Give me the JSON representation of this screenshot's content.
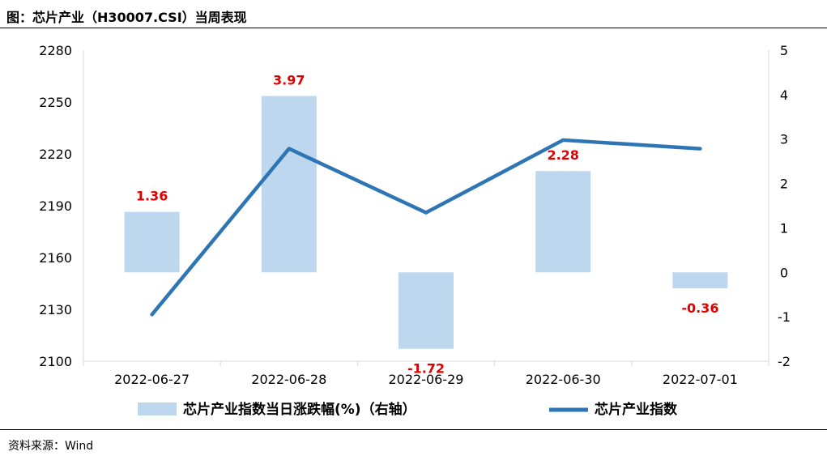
{
  "page": {
    "title": "图：芯片产业（H30007.CSI）当周表现",
    "source": "资料来源：Wind"
  },
  "colors": {
    "bar": "#bdd7ee",
    "line": "#2e75b6",
    "label": "#e00000",
    "axis": "#d9d9d9"
  },
  "chart_data": {
    "type": "bar",
    "categories": [
      "2022-06-27",
      "2022-06-28",
      "2022-06-29",
      "2022-06-30",
      "2022-07-01"
    ],
    "series": [
      {
        "name": "芯片产业指数当日涨跌幅(%)（右轴）",
        "type": "bar",
        "axis": "right",
        "values": [
          1.36,
          3.97,
          -1.72,
          2.28,
          -0.36
        ],
        "labels": [
          "1.36",
          "3.97",
          "-1.72",
          "2.28",
          "-0.36"
        ]
      },
      {
        "name": "芯片产业指数",
        "type": "line",
        "axis": "left",
        "values": [
          2127,
          2223,
          2186,
          2228,
          2223
        ]
      }
    ],
    "y_left": {
      "ylim": [
        2100,
        2280
      ],
      "ticks": [
        "2100",
        "2130",
        "2160",
        "2190",
        "2220",
        "2250",
        "2280"
      ]
    },
    "y_right": {
      "ylim": [
        -2,
        5
      ],
      "ticks": [
        "-2",
        "-1",
        "0",
        "1",
        "2",
        "3",
        "4",
        "5"
      ]
    },
    "grid": false,
    "legend": "bottom"
  }
}
